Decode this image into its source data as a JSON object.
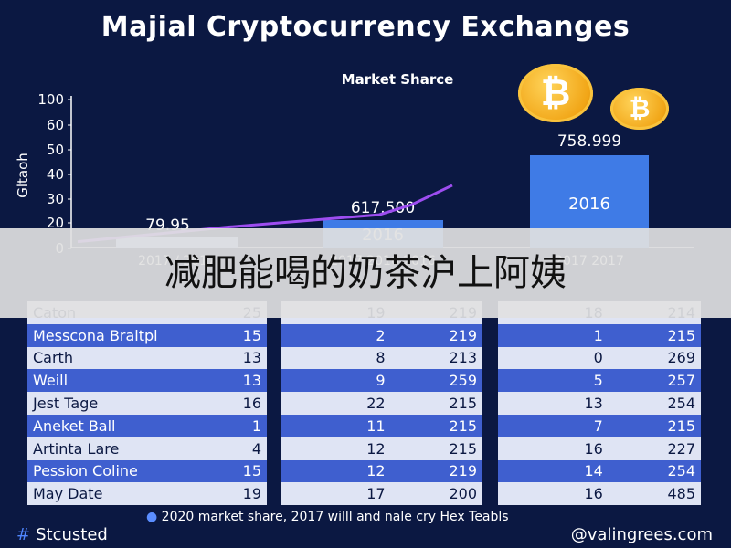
{
  "title": "Majial Cryptocurrency Exchanges",
  "subtitle": "Market Sharce",
  "coin_symbol": "₿",
  "banner_text": "减肥能喝的奶茶沪上阿姨",
  "footnote": "2020 market share, 2017 willl and nale cry Hex Teabls",
  "brand_left": "Stcusted",
  "brand_right": "@valingrees.com",
  "colors": {
    "background": "#0b1842",
    "bar_light": "#a9c1f4",
    "bar_blue": "#3f7be6",
    "line": "#9d4df0",
    "coin": "#f1a516"
  },
  "chart_data": {
    "type": "bar",
    "title": "Market Sharce",
    "ylabel": "Gltaoh",
    "ylim": [
      0,
      100
    ],
    "yticks": [
      0,
      10,
      20,
      30,
      40,
      50,
      60,
      100
    ],
    "categories": [
      "2017",
      "2016",
      "2016"
    ],
    "bars": [
      {
        "value": 5,
        "label": "79.95",
        "inner_label": "",
        "category": "2017 / 2017",
        "color": "#a9c1f4"
      },
      {
        "value": 13,
        "label": "617.500",
        "inner_label": "2016",
        "category": "2017 2016 2016",
        "color": "#3f7be6"
      },
      {
        "value": 39,
        "label": "758.999",
        "inner_label": "2016",
        "category": "2017 2017",
        "color": "#3f7be6"
      }
    ],
    "line": {
      "x": [
        0,
        0.8,
        1.3,
        1.6,
        2.1
      ],
      "y": [
        2,
        8,
        13,
        17,
        25
      ]
    }
  },
  "table1": {
    "rows": [
      {
        "name": "Caton",
        "value": "25"
      },
      {
        "name": "Messcona Braltpl",
        "value": "15"
      },
      {
        "name": "Carth",
        "value": "13"
      },
      {
        "name": "Weill",
        "value": "13"
      },
      {
        "name": "Jest Tage",
        "value": "16"
      },
      {
        "name": "Aneket Ball",
        "value": "1"
      },
      {
        "name": "Artinta Lare",
        "value": "4"
      },
      {
        "name": "Pession Coline",
        "value": "15"
      },
      {
        "name": "May Date",
        "value": "19"
      }
    ]
  },
  "table2": {
    "rows": [
      {
        "a": "19",
        "b": "219"
      },
      {
        "a": "2",
        "b": "219"
      },
      {
        "a": "8",
        "b": "213"
      },
      {
        "a": "9",
        "b": "259"
      },
      {
        "a": "22",
        "b": "215"
      },
      {
        "a": "11",
        "b": "215"
      },
      {
        "a": "12",
        "b": "215"
      },
      {
        "a": "12",
        "b": "219"
      },
      {
        "a": "17",
        "b": "200"
      }
    ]
  },
  "table3": {
    "rows": [
      {
        "a": "18",
        "b": "214"
      },
      {
        "a": "1",
        "b": "215"
      },
      {
        "a": "0",
        "b": "269"
      },
      {
        "a": "5",
        "b": "257"
      },
      {
        "a": "13",
        "b": "254"
      },
      {
        "a": "7",
        "b": "215"
      },
      {
        "a": "16",
        "b": "227"
      },
      {
        "a": "14",
        "b": "254"
      },
      {
        "a": "16",
        "b": "485"
      }
    ]
  }
}
